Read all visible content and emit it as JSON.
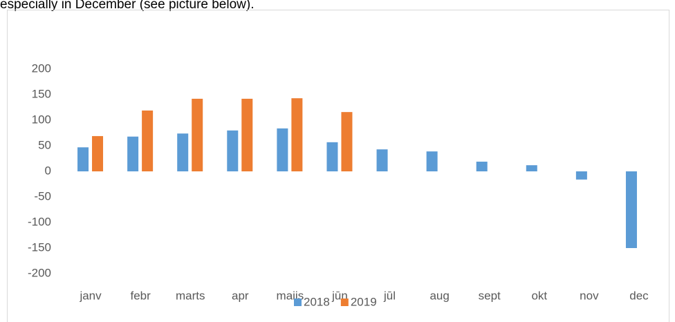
{
  "intro_text": "especially in December (see picture below).",
  "chart_data": {
    "type": "bar",
    "categories": [
      "janv",
      "febr",
      "marts",
      "apr",
      "maijs",
      "jūn",
      "jūl",
      "aug",
      "sept",
      "okt",
      "nov",
      "dec"
    ],
    "series": [
      {
        "name": "2018",
        "color": "#5b9bd5",
        "values": [
          47,
          68,
          74,
          80,
          84,
          57,
          43,
          39,
          19,
          12,
          -16,
          -150
        ]
      },
      {
        "name": "2019",
        "color": "#ed7d31",
        "values": [
          69,
          119,
          142,
          142,
          143,
          116,
          null,
          null,
          null,
          null,
          null,
          null
        ]
      }
    ],
    "ylim": [
      -200,
      200
    ],
    "yticks": [
      -200,
      -150,
      -100,
      -50,
      0,
      50,
      100,
      150,
      200
    ],
    "grid": false,
    "legend": "bottom"
  }
}
